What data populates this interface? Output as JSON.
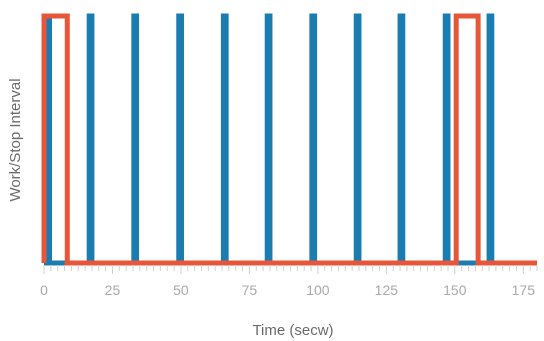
{
  "chart_data": {
    "type": "line",
    "title": "",
    "xlabel": "Time (secw)",
    "ylabel": "Work/Stop Interval",
    "xlim": [
      0,
      180
    ],
    "ylim": [
      0,
      1
    ],
    "x_ticks": [
      0,
      25,
      50,
      75,
      100,
      125,
      150,
      175
    ],
    "x_minor_tick_step": 2.5,
    "grid": false,
    "legend": "none",
    "series": [
      {
        "color": "#1a7cb0",
        "points": [
          [
            0,
            0
          ],
          [
            1,
            0
          ],
          [
            1,
            1
          ],
          [
            2,
            1
          ],
          [
            2,
            0
          ],
          [
            8,
            0
          ],
          [
            16.5,
            0
          ],
          [
            16.5,
            1
          ],
          [
            17.5,
            1
          ],
          [
            17.5,
            0
          ],
          [
            32.8,
            0
          ],
          [
            32.8,
            1
          ],
          [
            33.8,
            1
          ],
          [
            33.8,
            0
          ],
          [
            49.2,
            0
          ],
          [
            49.2,
            1
          ],
          [
            50.2,
            1
          ],
          [
            50.2,
            0
          ],
          [
            65.5,
            0
          ],
          [
            65.5,
            1
          ],
          [
            66.5,
            1
          ],
          [
            66.5,
            0
          ],
          [
            81.5,
            0
          ],
          [
            81.5,
            1
          ],
          [
            82.5,
            1
          ],
          [
            82.5,
            0
          ],
          [
            97.8,
            0
          ],
          [
            97.8,
            1
          ],
          [
            98.8,
            1
          ],
          [
            98.8,
            0
          ],
          [
            114,
            0
          ],
          [
            114,
            1
          ],
          [
            115,
            1
          ],
          [
            115,
            0
          ],
          [
            130,
            0
          ],
          [
            130,
            1
          ],
          [
            131,
            1
          ],
          [
            131,
            0
          ],
          [
            146.5,
            0
          ],
          [
            146.5,
            1
          ],
          [
            147.5,
            1
          ],
          [
            147.5,
            0
          ],
          [
            162.5,
            0
          ],
          [
            162.5,
            1
          ],
          [
            163.5,
            1
          ],
          [
            163.5,
            0
          ],
          [
            180,
            0
          ]
        ]
      },
      {
        "color": "#e8563a",
        "points": [
          [
            0,
            0
          ],
          [
            0,
            1
          ],
          [
            8.5,
            1
          ],
          [
            8.5,
            0
          ],
          [
            150.5,
            0
          ],
          [
            150.5,
            1
          ],
          [
            158.5,
            1
          ],
          [
            158.5,
            0
          ],
          [
            180,
            0
          ]
        ]
      }
    ]
  }
}
